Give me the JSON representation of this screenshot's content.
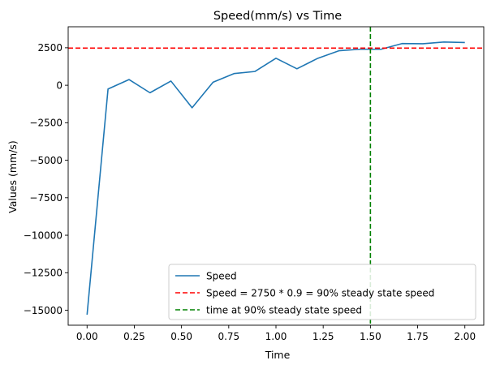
{
  "chart_data": {
    "type": "line",
    "title": "Speed(mm/s) vs Time",
    "xlabel": "Time",
    "ylabel": "Values (mm/s)",
    "xlim": [
      -0.1,
      2.1
    ],
    "ylim": [
      -16000,
      3900
    ],
    "xticks": [
      0.0,
      0.25,
      0.5,
      0.75,
      1.0,
      1.25,
      1.5,
      1.75,
      2.0
    ],
    "xtick_labels": [
      "0.00",
      "0.25",
      "0.50",
      "0.75",
      "1.00",
      "1.25",
      "1.50",
      "1.75",
      "2.00"
    ],
    "yticks": [
      -15000,
      -12500,
      -10000,
      -7500,
      -5000,
      -2500,
      0,
      2500
    ],
    "ytick_labels": [
      "−15000",
      "−12500",
      "−10000",
      "−7500",
      "−5000",
      "−2500",
      "0",
      "2500"
    ],
    "grid": false,
    "legend_position": "lower right",
    "series": [
      {
        "name": "Speed",
        "color": "#1f77b4",
        "style": "solid",
        "x": [
          0.0,
          0.111,
          0.222,
          0.333,
          0.444,
          0.556,
          0.667,
          0.778,
          0.889,
          1.0,
          1.111,
          1.222,
          1.333,
          1.444,
          1.556,
          1.667,
          1.778,
          1.889,
          2.0
        ],
        "y": [
          -15300,
          -250,
          380,
          -500,
          280,
          -1500,
          200,
          780,
          920,
          1800,
          1100,
          1800,
          2300,
          2400,
          2400,
          2780,
          2770,
          2880,
          2850
        ]
      }
    ],
    "hlines": [
      {
        "name": "Speed = 2750 * 0.9 = 90% steady state speed",
        "y": 2475,
        "color": "#ff0000",
        "style": "dashed"
      }
    ],
    "vlines": [
      {
        "name": "time at 90% steady state speed",
        "x": 1.5,
        "color": "#008000",
        "style": "dashed"
      }
    ]
  }
}
